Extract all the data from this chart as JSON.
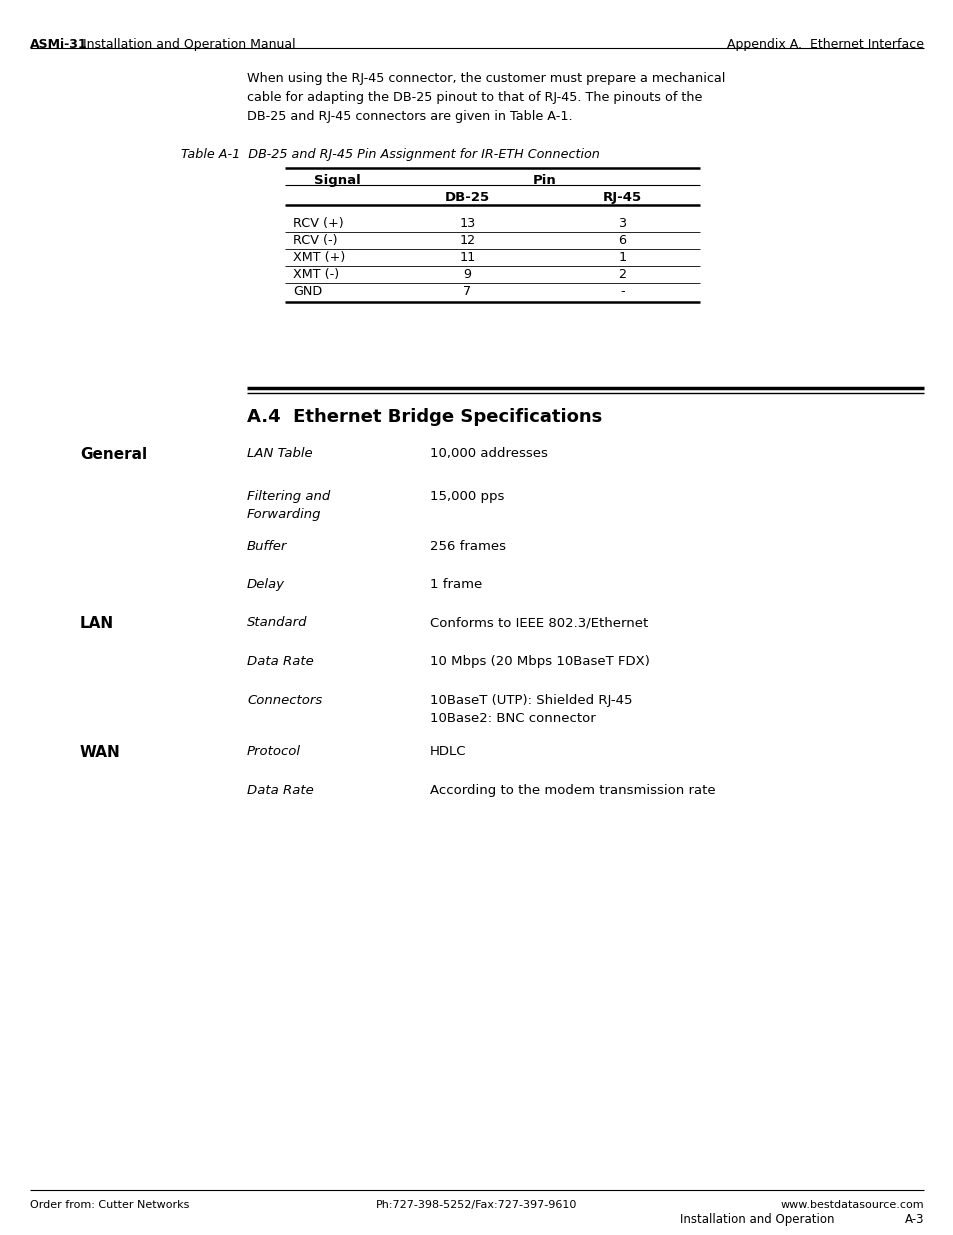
{
  "bg_color": "#ffffff",
  "header_left_bold": "ASMi-31",
  "header_left_normal": " Installation and Operation Manual",
  "header_right": "Appendix A.  Ethernet Interface",
  "footer_left": "Order from: Cutter Networks",
  "footer_center": "Ph:727-398-5252/Fax:727-397-9610",
  "footer_right": "www.bestdatasource.com",
  "footer_page": "Installation and Operation          A-3",
  "intro_text": "When using the RJ-45 connector, the customer must prepare a mechanical\ncable for adapting the DB-25 pinout to that of RJ-45. The pinouts of the\nDB-25 and RJ-45 connectors are given in Table A-1.",
  "table_title": "Table A-1  DB-25 and RJ-45 Pin Assignment for IR-ETH Connection",
  "table_col_headers": [
    "Signal",
    "Pin",
    ""
  ],
  "table_sub_headers": [
    "",
    "DB-25",
    "RJ-45"
  ],
  "table_rows": [
    [
      "RCV (+)",
      "13",
      "3"
    ],
    [
      "RCV (-)",
      "12",
      "6"
    ],
    [
      "XMT (+)",
      "11",
      "1"
    ],
    [
      "XMT (-)",
      "9",
      "2"
    ],
    [
      "GND",
      "7",
      "-"
    ]
  ],
  "section_title": "A.4  Ethernet Bridge Specifications",
  "specs": [
    {
      "category": "General",
      "label": "LAN Table",
      "value": "10,000 addresses",
      "label_italic": true
    },
    {
      "category": "",
      "label": "Filtering and\nForwarding",
      "value": "15,000 pps",
      "label_italic": true
    },
    {
      "category": "",
      "label": "Buffer",
      "value": "256 frames",
      "label_italic": true
    },
    {
      "category": "",
      "label": "Delay",
      "value": "1 frame",
      "label_italic": true
    },
    {
      "category": "LAN",
      "label": "Standard",
      "value": "Conforms to IEEE 802.3/Ethernet",
      "label_italic": true
    },
    {
      "category": "",
      "label": "Data Rate",
      "value": "10 Mbps (20 Mbps 10BaseT FDX)",
      "label_italic": true
    },
    {
      "category": "",
      "label": "Connectors",
      "value": "10BaseT (UTP): Shielded RJ-45\n10Base2: BNC connector",
      "label_italic": true
    },
    {
      "category": "WAN",
      "label": "Protocol",
      "value": "HDLC",
      "label_italic": true
    },
    {
      "category": "",
      "label": "Data Rate",
      "value": "According to the modem transmission rate",
      "label_italic": true
    }
  ]
}
